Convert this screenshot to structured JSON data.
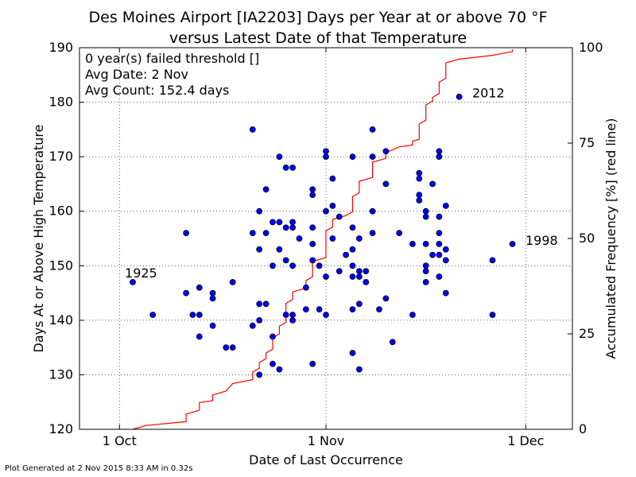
{
  "title_line1": "Des Moines Airport [IA2203] Days per Year at or above 70 °F",
  "title_line2": "versus Latest Date of that Temperature",
  "info": {
    "line1": "0 year(s) failed threshold []",
    "line2": "Avg Date: 2 Nov",
    "line3": "Avg Count: 152.4 days"
  },
  "footer": "Plot Generated at 2 Nov 2015 8:33 AM in 0.32s",
  "colors": {
    "points": "#0000ff",
    "line": "#ff0000"
  },
  "chart_data": {
    "type": "scatter",
    "xlabel": "Date of Last Occurrence",
    "ylabel": "Days At or Above High Temperature",
    "y2label": "Accumulated Frequency [%] (red line)",
    "x_ticks": [
      "1 Oct",
      "1 Nov",
      "1 Dec"
    ],
    "xlim": [
      "2015-09-25",
      "2015-12-08"
    ],
    "ylim": [
      120,
      190
    ],
    "y_ticks": [
      120,
      130,
      140,
      150,
      160,
      170,
      180,
      190
    ],
    "y2lim": [
      0,
      100
    ],
    "y2_ticks": [
      0,
      25,
      50,
      75,
      100
    ],
    "grid": true,
    "annotations": [
      {
        "text": "1925",
        "x": "2015-10-03",
        "y": 147
      },
      {
        "text": "2012",
        "x": "2015-11-22",
        "y": 181
      },
      {
        "text": "1998",
        "x": "2015-11-30",
        "y": 154
      }
    ],
    "points": [
      {
        "x": "2015-10-03",
        "y": 147
      },
      {
        "x": "2015-10-06",
        "y": 141
      },
      {
        "x": "2015-10-11",
        "y": 156
      },
      {
        "x": "2015-10-11",
        "y": 145
      },
      {
        "x": "2015-10-12",
        "y": 141
      },
      {
        "x": "2015-10-13",
        "y": 146
      },
      {
        "x": "2015-10-13",
        "y": 141
      },
      {
        "x": "2015-10-13",
        "y": 137
      },
      {
        "x": "2015-10-15",
        "y": 145
      },
      {
        "x": "2015-10-15",
        "y": 144
      },
      {
        "x": "2015-10-15",
        "y": 139
      },
      {
        "x": "2015-10-17",
        "y": 135
      },
      {
        "x": "2015-10-18",
        "y": 147
      },
      {
        "x": "2015-10-18",
        "y": 135
      },
      {
        "x": "2015-10-21",
        "y": 175
      },
      {
        "x": "2015-10-21",
        "y": 156
      },
      {
        "x": "2015-10-21",
        "y": 139
      },
      {
        "x": "2015-10-22",
        "y": 160
      },
      {
        "x": "2015-10-22",
        "y": 153
      },
      {
        "x": "2015-10-22",
        "y": 143
      },
      {
        "x": "2015-10-22",
        "y": 140
      },
      {
        "x": "2015-10-22",
        "y": 130
      },
      {
        "x": "2015-10-23",
        "y": 164
      },
      {
        "x": "2015-10-23",
        "y": 156
      },
      {
        "x": "2015-10-23",
        "y": 143
      },
      {
        "x": "2015-10-24",
        "y": 158
      },
      {
        "x": "2015-10-24",
        "y": 150
      },
      {
        "x": "2015-10-24",
        "y": 137
      },
      {
        "x": "2015-10-24",
        "y": 132
      },
      {
        "x": "2015-10-25",
        "y": 170
      },
      {
        "x": "2015-10-25",
        "y": 158
      },
      {
        "x": "2015-10-25",
        "y": 153
      },
      {
        "x": "2015-10-25",
        "y": 131
      },
      {
        "x": "2015-10-26",
        "y": 168
      },
      {
        "x": "2015-10-26",
        "y": 157
      },
      {
        "x": "2015-10-26",
        "y": 151
      },
      {
        "x": "2015-10-26",
        "y": 141
      },
      {
        "x": "2015-10-27",
        "y": 168
      },
      {
        "x": "2015-10-27",
        "y": 158
      },
      {
        "x": "2015-10-27",
        "y": 157
      },
      {
        "x": "2015-10-27",
        "y": 150
      },
      {
        "x": "2015-10-27",
        "y": 141
      },
      {
        "x": "2015-10-27",
        "y": 140
      },
      {
        "x": "2015-10-28",
        "y": 155
      },
      {
        "x": "2015-10-29",
        "y": 146
      },
      {
        "x": "2015-10-29",
        "y": 142
      },
      {
        "x": "2015-10-30",
        "y": 164
      },
      {
        "x": "2015-10-30",
        "y": 163
      },
      {
        "x": "2015-10-30",
        "y": 157
      },
      {
        "x": "2015-10-30",
        "y": 154
      },
      {
        "x": "2015-10-30",
        "y": 151
      },
      {
        "x": "2015-10-30",
        "y": 132
      },
      {
        "x": "2015-10-31",
        "y": 150
      },
      {
        "x": "2015-10-31",
        "y": 142
      },
      {
        "x": "2015-11-01",
        "y": 171
      },
      {
        "x": "2015-11-01",
        "y": 170
      },
      {
        "x": "2015-11-01",
        "y": 160
      },
      {
        "x": "2015-11-01",
        "y": 148
      },
      {
        "x": "2015-11-01",
        "y": 141
      },
      {
        "x": "2015-11-02",
        "y": 166
      },
      {
        "x": "2015-11-02",
        "y": 161
      },
      {
        "x": "2015-11-02",
        "y": 155
      },
      {
        "x": "2015-11-03",
        "y": 159
      },
      {
        "x": "2015-11-03",
        "y": 149
      },
      {
        "x": "2015-11-04",
        "y": 152
      },
      {
        "x": "2015-11-05",
        "y": 170
      },
      {
        "x": "2015-11-05",
        "y": 157
      },
      {
        "x": "2015-11-05",
        "y": 153
      },
      {
        "x": "2015-11-05",
        "y": 150
      },
      {
        "x": "2015-11-05",
        "y": 148
      },
      {
        "x": "2015-11-05",
        "y": 142
      },
      {
        "x": "2015-11-05",
        "y": 134
      },
      {
        "x": "2015-11-06",
        "y": 155
      },
      {
        "x": "2015-11-06",
        "y": 149
      },
      {
        "x": "2015-11-06",
        "y": 148
      },
      {
        "x": "2015-11-06",
        "y": 143
      },
      {
        "x": "2015-11-06",
        "y": 131
      },
      {
        "x": "2015-11-07",
        "y": 149
      },
      {
        "x": "2015-11-07",
        "y": 147
      },
      {
        "x": "2015-11-08",
        "y": 175
      },
      {
        "x": "2015-11-08",
        "y": 170
      },
      {
        "x": "2015-11-08",
        "y": 160
      },
      {
        "x": "2015-11-08",
        "y": 156
      },
      {
        "x": "2015-11-09",
        "y": 142
      },
      {
        "x": "2015-11-10",
        "y": 171
      },
      {
        "x": "2015-11-10",
        "y": 165
      },
      {
        "x": "2015-11-10",
        "y": 144
      },
      {
        "x": "2015-11-11",
        "y": 136
      },
      {
        "x": "2015-11-12",
        "y": 156
      },
      {
        "x": "2015-11-14",
        "y": 154
      },
      {
        "x": "2015-11-14",
        "y": 141
      },
      {
        "x": "2015-11-15",
        "y": 167
      },
      {
        "x": "2015-11-15",
        "y": 166
      },
      {
        "x": "2015-11-15",
        "y": 163
      },
      {
        "x": "2015-11-15",
        "y": 162
      },
      {
        "x": "2015-11-16",
        "y": 160
      },
      {
        "x": "2015-11-16",
        "y": 159
      },
      {
        "x": "2015-11-16",
        "y": 154
      },
      {
        "x": "2015-11-16",
        "y": 150
      },
      {
        "x": "2015-11-16",
        "y": 149
      },
      {
        "x": "2015-11-16",
        "y": 147
      },
      {
        "x": "2015-11-17",
        "y": 165
      },
      {
        "x": "2015-11-17",
        "y": 152
      },
      {
        "x": "2015-11-18",
        "y": 171
      },
      {
        "x": "2015-11-18",
        "y": 170
      },
      {
        "x": "2015-11-18",
        "y": 159
      },
      {
        "x": "2015-11-18",
        "y": 156
      },
      {
        "x": "2015-11-18",
        "y": 154
      },
      {
        "x": "2015-11-18",
        "y": 152
      },
      {
        "x": "2015-11-18",
        "y": 148
      },
      {
        "x": "2015-11-19",
        "y": 161
      },
      {
        "x": "2015-11-19",
        "y": 153
      },
      {
        "x": "2015-11-19",
        "y": 151
      },
      {
        "x": "2015-11-19",
        "y": 145
      },
      {
        "x": "2015-11-21",
        "y": 181
      },
      {
        "x": "2015-11-26",
        "y": 151
      },
      {
        "x": "2015-11-26",
        "y": 141
      },
      {
        "x": "2015-11-29",
        "y": 154
      }
    ],
    "cdf_line": [
      {
        "x": "2015-10-03",
        "y": 0
      },
      {
        "x": "2015-10-05",
        "y": 1
      },
      {
        "x": "2015-10-11",
        "y": 2
      },
      {
        "x": "2015-10-11",
        "y": 4
      },
      {
        "x": "2015-10-13",
        "y": 5
      },
      {
        "x": "2015-10-13",
        "y": 7
      },
      {
        "x": "2015-10-15",
        "y": 7.5
      },
      {
        "x": "2015-10-15",
        "y": 9
      },
      {
        "x": "2015-10-17",
        "y": 10
      },
      {
        "x": "2015-10-18",
        "y": 12
      },
      {
        "x": "2015-10-21",
        "y": 13
      },
      {
        "x": "2015-10-21",
        "y": 15
      },
      {
        "x": "2015-10-22",
        "y": 16
      },
      {
        "x": "2015-10-22",
        "y": 17.5
      },
      {
        "x": "2015-10-23",
        "y": 18.5
      },
      {
        "x": "2015-10-23",
        "y": 20
      },
      {
        "x": "2015-10-24",
        "y": 21
      },
      {
        "x": "2015-10-24",
        "y": 24
      },
      {
        "x": "2015-10-25",
        "y": 25
      },
      {
        "x": "2015-10-25",
        "y": 27
      },
      {
        "x": "2015-10-26",
        "y": 28
      },
      {
        "x": "2015-10-26",
        "y": 33
      },
      {
        "x": "2015-10-27",
        "y": 34
      },
      {
        "x": "2015-10-27",
        "y": 36
      },
      {
        "x": "2015-10-29",
        "y": 37
      },
      {
        "x": "2015-10-29",
        "y": 39
      },
      {
        "x": "2015-10-30",
        "y": 40
      },
      {
        "x": "2015-10-30",
        "y": 44
      },
      {
        "x": "2015-11-01",
        "y": 45
      },
      {
        "x": "2015-11-01",
        "y": 52
      },
      {
        "x": "2015-11-02",
        "y": 53
      },
      {
        "x": "2015-11-02",
        "y": 55
      },
      {
        "x": "2015-11-04",
        "y": 56
      },
      {
        "x": "2015-11-05",
        "y": 57
      },
      {
        "x": "2015-11-05",
        "y": 61
      },
      {
        "x": "2015-11-06",
        "y": 62
      },
      {
        "x": "2015-11-06",
        "y": 65
      },
      {
        "x": "2015-11-08",
        "y": 66
      },
      {
        "x": "2015-11-08",
        "y": 70
      },
      {
        "x": "2015-11-10",
        "y": 71
      },
      {
        "x": "2015-11-10",
        "y": 72.5
      },
      {
        "x": "2015-11-12",
        "y": 74
      },
      {
        "x": "2015-11-14",
        "y": 74.5
      },
      {
        "x": "2015-11-14",
        "y": 75.5
      },
      {
        "x": "2015-11-15",
        "y": 76
      },
      {
        "x": "2015-11-15",
        "y": 80
      },
      {
        "x": "2015-11-16",
        "y": 81
      },
      {
        "x": "2015-11-16",
        "y": 85
      },
      {
        "x": "2015-11-17",
        "y": 86
      },
      {
        "x": "2015-11-17",
        "y": 87
      },
      {
        "x": "2015-11-18",
        "y": 88
      },
      {
        "x": "2015-11-18",
        "y": 91
      },
      {
        "x": "2015-11-19",
        "y": 92
      },
      {
        "x": "2015-11-19",
        "y": 96
      },
      {
        "x": "2015-11-21",
        "y": 97
      },
      {
        "x": "2015-11-26",
        "y": 98
      },
      {
        "x": "2015-11-29",
        "y": 99
      },
      {
        "x": "2015-11-29",
        "y": 99.5
      }
    ]
  }
}
